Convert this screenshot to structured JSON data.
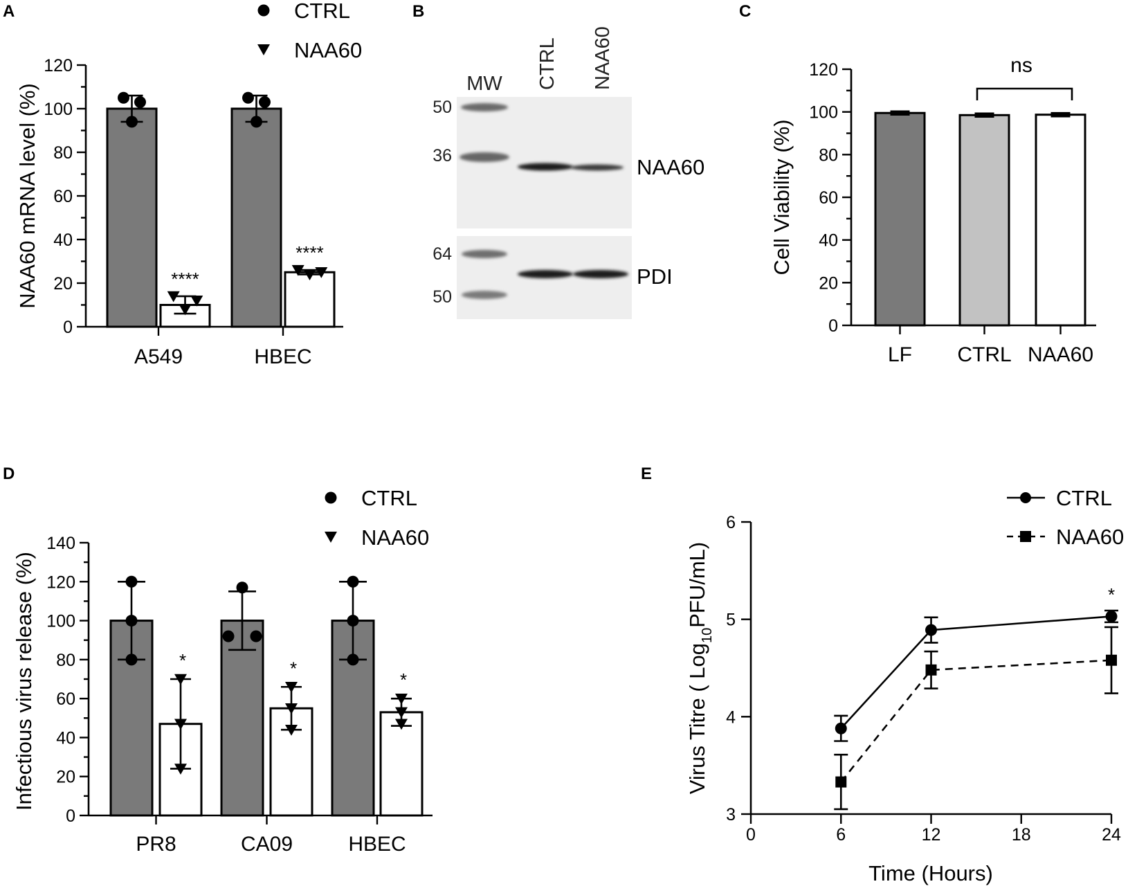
{
  "panel_labels": {
    "A": "A",
    "B": "B",
    "C": "C",
    "D": "D",
    "E": "E"
  },
  "blot": {
    "lanes": [
      "MW",
      "CTRL",
      "NAA60"
    ],
    "top_markers": [
      "50",
      "36"
    ],
    "bottom_markers": [
      "64",
      "50"
    ],
    "top_protein": "NAA60",
    "bottom_protein": "PDI"
  },
  "chart_data": [
    {
      "id": "A",
      "type": "bar",
      "ylabel": "NAA60 mRNA level (%)",
      "ylim": [
        0,
        120
      ],
      "yticks": [
        "0",
        "20",
        "40",
        "60",
        "80",
        "100",
        "120"
      ],
      "categories": [
        "A549",
        "HBEC"
      ],
      "legend": [
        "CTRL",
        "NAA60"
      ],
      "series": [
        {
          "name": "CTRL",
          "values": [
            100,
            100
          ],
          "err": [
            6,
            6
          ],
          "points": [
            [
              105,
              94,
              103
            ],
            [
              105,
              94,
              103
            ]
          ]
        },
        {
          "name": "NAA60",
          "values": [
            10,
            25
          ],
          "err": [
            4,
            1
          ],
          "points": [
            [
              14,
              8,
              12
            ],
            [
              26,
              24,
              25
            ]
          ]
        }
      ],
      "annotations": [
        "****",
        "****"
      ]
    },
    {
      "id": "C",
      "type": "bar",
      "ylabel": "Cell Viability  (%)",
      "ylim": [
        0,
        120
      ],
      "yticks": [
        "0",
        "20",
        "40",
        "60",
        "80",
        "100",
        "120"
      ],
      "categories": [
        "LF",
        "CTRL",
        "NAA60"
      ],
      "values": [
        99.5,
        98.5,
        98.7
      ],
      "err": [
        0.8,
        0.8,
        0.8
      ],
      "significance": "ns"
    },
    {
      "id": "D",
      "type": "bar",
      "ylabel": "Infectious virus release (%)",
      "ylim": [
        0,
        140
      ],
      "yticks": [
        "0",
        "20",
        "40",
        "60",
        "80",
        "100",
        "120",
        "140"
      ],
      "categories": [
        "PR8",
        "CA09",
        "HBEC"
      ],
      "legend": [
        "CTRL",
        "NAA60"
      ],
      "series": [
        {
          "name": "CTRL",
          "values": [
            100,
            100,
            100
          ],
          "err": [
            20,
            15,
            20
          ],
          "points": [
            [
              120,
              100,
              80
            ],
            [
              117,
              92,
              92
            ],
            [
              120,
              100,
              80
            ]
          ]
        },
        {
          "name": "NAA60",
          "values": [
            47,
            55,
            53
          ],
          "err": [
            23,
            11,
            7
          ],
          "points": [
            [
              70,
              47,
              24
            ],
            [
              66,
              55,
              44
            ],
            [
              60,
              53,
              47
            ]
          ]
        }
      ],
      "annotations": [
        "*",
        "*",
        "*"
      ]
    },
    {
      "id": "E",
      "type": "line",
      "xlabel": "Time (Hours)",
      "ylabel_prefix": "Virus Titre ( Log",
      "ylabel_sub": "10",
      "ylabel_suffix": "PFU/mL)",
      "xlim": [
        0,
        24
      ],
      "ylim": [
        3,
        6
      ],
      "xticks": [
        "0",
        "6",
        "12",
        "18",
        "24"
      ],
      "yticks": [
        "3",
        "4",
        "5",
        "6"
      ],
      "series": [
        {
          "name": "CTRL",
          "x": [
            6,
            12,
            24
          ],
          "y": [
            3.88,
            4.89,
            5.03
          ],
          "err": [
            0.13,
            0.13,
            0.06
          ]
        },
        {
          "name": "NAA60",
          "x": [
            6,
            12,
            24
          ],
          "y": [
            3.33,
            4.48,
            4.58
          ],
          "err": [
            0.28,
            0.19,
            0.34
          ]
        }
      ],
      "annotation": "*"
    }
  ]
}
